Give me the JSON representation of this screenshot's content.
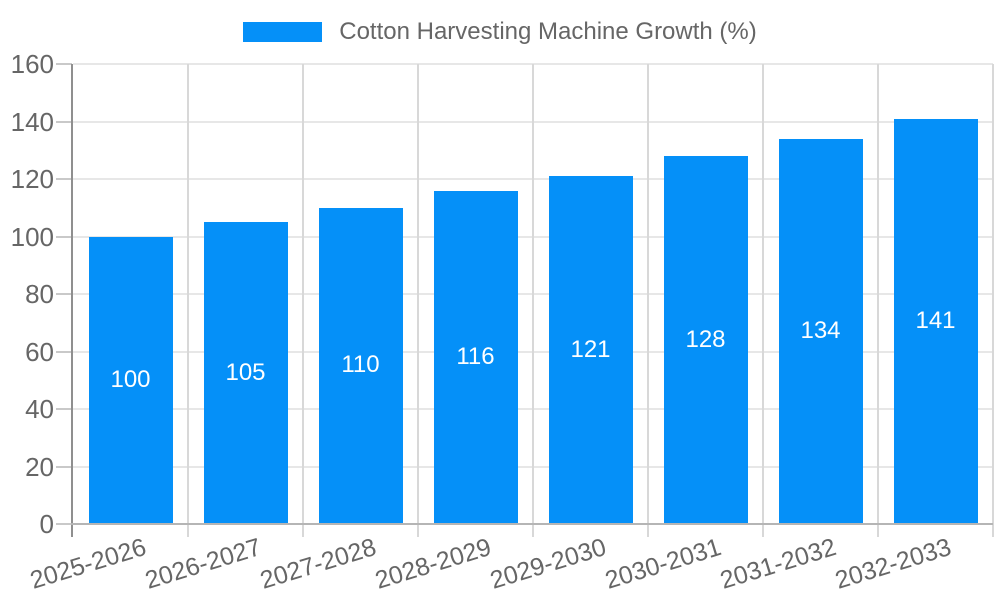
{
  "legend": {
    "label": "Cotton Harvesting Machine Growth (%)"
  },
  "colors": {
    "bar": "#0590F8",
    "bar_label": "#FFFFFF",
    "axis_text": "#666666"
  },
  "chart_data": {
    "type": "bar",
    "title": "Cotton Harvesting Machine Growth (%)",
    "categories": [
      "2025-2026",
      "2026-2027",
      "2027-2028",
      "2028-2029",
      "2029-2030",
      "2030-2031",
      "2031-2032",
      "2032-2033"
    ],
    "values": [
      100,
      105,
      110,
      116,
      121,
      128,
      134,
      141
    ],
    "xlabel": "",
    "ylabel": "",
    "ylim": [
      0,
      160
    ],
    "yticks": [
      0,
      20,
      40,
      60,
      80,
      100,
      120,
      140,
      160
    ],
    "grid": true,
    "legend_position": "top-center",
    "bar_value_labels": "inside-center",
    "x_tick_rotation_deg": -17
  }
}
